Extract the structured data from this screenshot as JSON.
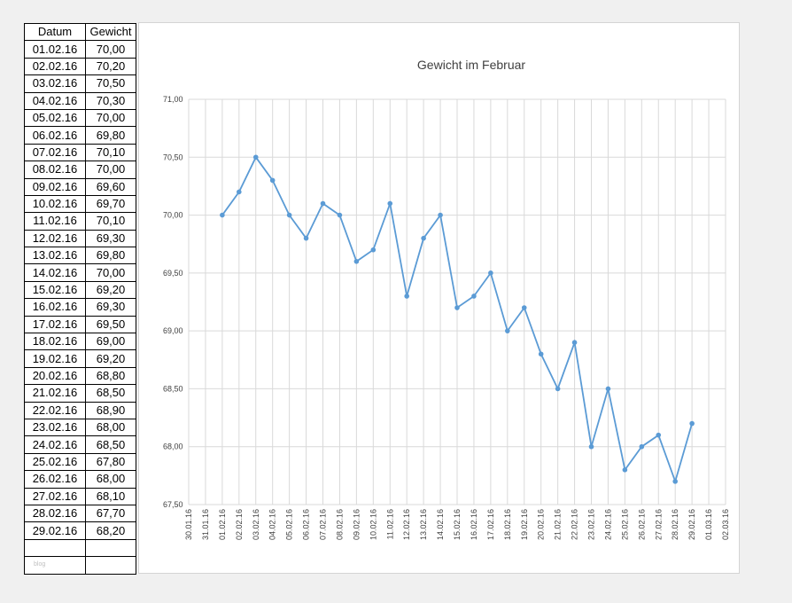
{
  "table": {
    "headers": [
      "Datum",
      "Gewicht"
    ],
    "rows": [
      [
        "01.02.16",
        "70,00"
      ],
      [
        "02.02.16",
        "70,20"
      ],
      [
        "03.02.16",
        "70,50"
      ],
      [
        "04.02.16",
        "70,30"
      ],
      [
        "05.02.16",
        "70,00"
      ],
      [
        "06.02.16",
        "69,80"
      ],
      [
        "07.02.16",
        "70,10"
      ],
      [
        "08.02.16",
        "70,00"
      ],
      [
        "09.02.16",
        "69,60"
      ],
      [
        "10.02.16",
        "69,70"
      ],
      [
        "11.02.16",
        "70,10"
      ],
      [
        "12.02.16",
        "69,30"
      ],
      [
        "13.02.16",
        "69,80"
      ],
      [
        "14.02.16",
        "70,00"
      ],
      [
        "15.02.16",
        "69,20"
      ],
      [
        "16.02.16",
        "69,30"
      ],
      [
        "17.02.16",
        "69,50"
      ],
      [
        "18.02.16",
        "69,00"
      ],
      [
        "19.02.16",
        "69,20"
      ],
      [
        "20.02.16",
        "68,80"
      ],
      [
        "21.02.16",
        "68,50"
      ],
      [
        "22.02.16",
        "68,90"
      ],
      [
        "23.02.16",
        "68,00"
      ],
      [
        "24.02.16",
        "68,50"
      ],
      [
        "25.02.16",
        "67,80"
      ],
      [
        "26.02.16",
        "68,00"
      ],
      [
        "27.02.16",
        "68,10"
      ],
      [
        "28.02.16",
        "67,70"
      ],
      [
        "29.02.16",
        "68,20"
      ]
    ],
    "footer_note": "blog"
  },
  "colors": {
    "line": "#5b9bd5",
    "grid": "#d9d9d9",
    "text": "#404040"
  },
  "chart_data": {
    "type": "line",
    "title": "Gewicht im Februar",
    "xlabel": "",
    "ylabel": "",
    "ylim": [
      67.5,
      71.0
    ],
    "yticks": [
      67.5,
      68.0,
      68.5,
      69.0,
      69.5,
      70.0,
      70.5,
      71.0
    ],
    "ytick_labels": [
      "67,50",
      "68,00",
      "68,50",
      "69,00",
      "69,50",
      "70,00",
      "70,50",
      "71,00"
    ],
    "xtick_labels": [
      "30.01.16",
      "31.01.16",
      "01.02.16",
      "02.02.16",
      "03.02.16",
      "04.02.16",
      "05.02.16",
      "06.02.16",
      "07.02.16",
      "08.02.16",
      "09.02.16",
      "10.02.16",
      "11.02.16",
      "12.02.16",
      "13.02.16",
      "14.02.16",
      "15.02.16",
      "16.02.16",
      "17.02.16",
      "18.02.16",
      "19.02.16",
      "20.02.16",
      "21.02.16",
      "22.02.16",
      "23.02.16",
      "24.02.16",
      "25.02.16",
      "26.02.16",
      "27.02.16",
      "28.02.16",
      "29.02.16",
      "01.03.16",
      "02.03.16"
    ],
    "grid": true,
    "legend": "none",
    "x": [
      "01.02.16",
      "02.02.16",
      "03.02.16",
      "04.02.16",
      "05.02.16",
      "06.02.16",
      "07.02.16",
      "08.02.16",
      "09.02.16",
      "10.02.16",
      "11.02.16",
      "12.02.16",
      "13.02.16",
      "14.02.16",
      "15.02.16",
      "16.02.16",
      "17.02.16",
      "18.02.16",
      "19.02.16",
      "20.02.16",
      "21.02.16",
      "22.02.16",
      "23.02.16",
      "24.02.16",
      "25.02.16",
      "26.02.16",
      "27.02.16",
      "28.02.16",
      "29.02.16"
    ],
    "values": [
      70.0,
      70.2,
      70.5,
      70.3,
      70.0,
      69.8,
      70.1,
      70.0,
      69.6,
      69.7,
      70.1,
      69.3,
      69.8,
      70.0,
      69.2,
      69.3,
      69.5,
      69.0,
      69.2,
      68.8,
      68.5,
      68.9,
      68.0,
      68.5,
      67.8,
      68.0,
      68.1,
      67.7,
      68.2
    ]
  }
}
